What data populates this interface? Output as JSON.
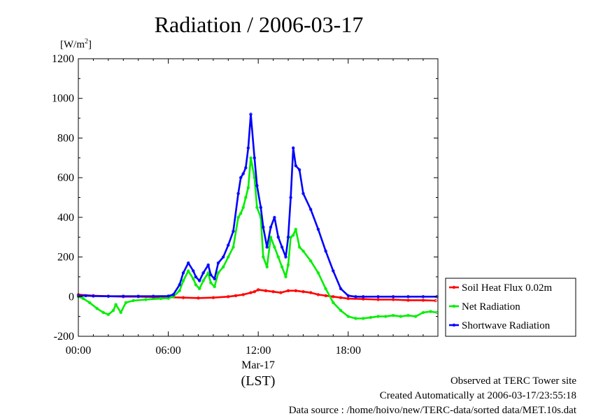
{
  "chart_data": {
    "type": "line",
    "title": "Radiation / 2006-03-17",
    "ylabel": "[W/m",
    "ylabel_sup": "2",
    "ylabel_close": "]",
    "xlabel": "(LST)",
    "x_date_label": "Mar-17",
    "xlim": [
      "00:00",
      "23:59"
    ],
    "ylim": [
      -200,
      1200
    ],
    "y_ticks": [
      "-200",
      "0",
      "200",
      "400",
      "600",
      "800",
      "1000",
      "1200"
    ],
    "x_ticks": [
      "00:00",
      "06:00",
      "12:00",
      "18:00"
    ],
    "grid": false,
    "legend_position": "right",
    "series": [
      {
        "name": "Soil Heat Flux 0.02m",
        "color": "#ff0000",
        "x": [
          "00:00",
          "01:00",
          "02:00",
          "03:00",
          "04:00",
          "05:00",
          "06:00",
          "07:00",
          "08:00",
          "09:00",
          "10:00",
          "10:30",
          "11:00",
          "11:30",
          "11:45",
          "12:00",
          "12:30",
          "13:00",
          "13:30",
          "14:00",
          "14:30",
          "15:00",
          "15:30",
          "16:00",
          "16:30",
          "17:00",
          "17:30",
          "18:00",
          "19:00",
          "20:00",
          "21:00",
          "22:00",
          "23:00",
          "23:50"
        ],
        "values": [
          10,
          5,
          2,
          0,
          0,
          -2,
          -3,
          -5,
          -7,
          -5,
          0,
          5,
          10,
          20,
          25,
          35,
          30,
          25,
          20,
          30,
          30,
          25,
          20,
          10,
          5,
          0,
          -5,
          -10,
          -12,
          -15,
          -15,
          -18,
          -18,
          -20
        ]
      },
      {
        "name": "Net Radiation",
        "color": "#00ee00",
        "x": [
          "00:00",
          "00:20",
          "00:45",
          "01:15",
          "01:40",
          "02:00",
          "02:20",
          "02:30",
          "02:50",
          "03:10",
          "03:40",
          "04:30",
          "05:30",
          "06:00",
          "06:20",
          "06:45",
          "07:00",
          "07:20",
          "07:40",
          "07:50",
          "08:05",
          "08:20",
          "08:40",
          "08:50",
          "09:05",
          "09:20",
          "09:40",
          "10:00",
          "10:20",
          "10:40",
          "10:50",
          "11:00",
          "11:10",
          "11:20",
          "11:30",
          "11:45",
          "11:55",
          "12:10",
          "12:20",
          "12:35",
          "12:50",
          "13:05",
          "13:20",
          "13:35",
          "13:50",
          "14:00",
          "14:10",
          "14:20",
          "14:30",
          "14:45",
          "15:00",
          "15:30",
          "16:00",
          "16:30",
          "17:00",
          "17:30",
          "18:00",
          "18:30",
          "19:00",
          "19:30",
          "20:00",
          "20:30",
          "21:00",
          "21:30",
          "22:00",
          "22:30",
          "23:00",
          "23:30",
          "23:55"
        ],
        "values": [
          0,
          -10,
          -30,
          -60,
          -80,
          -90,
          -70,
          -40,
          -80,
          -30,
          -20,
          -15,
          -10,
          -8,
          0,
          30,
          80,
          130,
          90,
          60,
          40,
          80,
          120,
          70,
          50,
          120,
          150,
          200,
          250,
          400,
          420,
          450,
          500,
          550,
          700,
          600,
          450,
          400,
          200,
          150,
          300,
          250,
          200,
          150,
          100,
          160,
          300,
          310,
          340,
          250,
          230,
          180,
          120,
          40,
          -30,
          -70,
          -100,
          -110,
          -110,
          -105,
          -100,
          -100,
          -95,
          -100,
          -95,
          -100,
          -80,
          -75,
          -80
        ]
      },
      {
        "name": "Shortwave Radiation",
        "color": "#0000ff",
        "x": [
          "00:00",
          "00:30",
          "01:00",
          "02:00",
          "03:00",
          "04:00",
          "05:00",
          "06:00",
          "06:20",
          "06:45",
          "07:00",
          "07:20",
          "07:40",
          "07:50",
          "08:05",
          "08:20",
          "08:40",
          "08:50",
          "09:05",
          "09:20",
          "09:40",
          "10:00",
          "10:20",
          "10:40",
          "10:50",
          "11:00",
          "11:10",
          "11:20",
          "11:30",
          "11:45",
          "11:55",
          "12:10",
          "12:20",
          "12:35",
          "12:50",
          "13:05",
          "13:20",
          "13:35",
          "13:50",
          "14:00",
          "14:10",
          "14:20",
          "14:30",
          "14:45",
          "15:00",
          "15:30",
          "16:00",
          "16:30",
          "17:00",
          "17:30",
          "18:00",
          "18:30",
          "19:00",
          "20:00",
          "21:00",
          "22:00",
          "23:00",
          "23:55"
        ],
        "values": [
          5,
          5,
          3,
          2,
          2,
          2,
          2,
          3,
          10,
          60,
          120,
          170,
          130,
          100,
          80,
          120,
          160,
          110,
          90,
          170,
          200,
          260,
          330,
          520,
          600,
          620,
          650,
          750,
          920,
          700,
          560,
          450,
          350,
          250,
          350,
          400,
          300,
          250,
          200,
          300,
          500,
          750,
          660,
          640,
          520,
          440,
          340,
          230,
          130,
          40,
          5,
          0,
          0,
          0,
          0,
          0,
          0,
          0
        ]
      }
    ]
  },
  "footer": {
    "observed": "Observed at TERC Tower site",
    "created": "Created Automatically at 2006-03-17/23:55:18",
    "source": "Data source : /home/hoivo/new/TERC-data/sorted  data/MET.10s.dat"
  }
}
